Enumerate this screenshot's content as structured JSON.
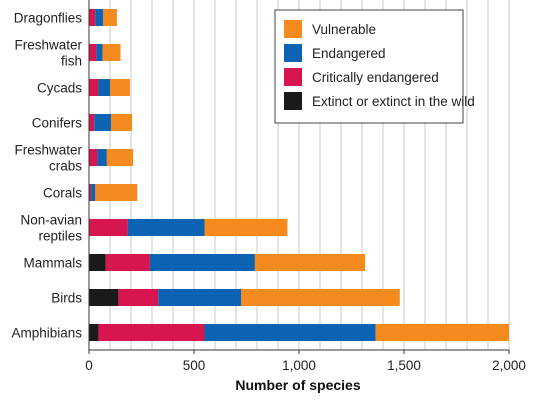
{
  "chart_data": {
    "type": "bar",
    "orientation": "horizontal",
    "stacked": true,
    "title": "",
    "xlabel": "Number of species",
    "ylabel": "",
    "xlim": [
      0,
      2000
    ],
    "xticks": [
      0,
      500,
      1000,
      1500,
      2000
    ],
    "xtick_labels": [
      "0",
      "500",
      "1,000",
      "1,500",
      "2,000"
    ],
    "grid": "vertical",
    "legend_position": "top-right",
    "categories": [
      [
        "Dragonflies"
      ],
      [
        "Freshwater",
        "fish"
      ],
      [
        "Cycads"
      ],
      [
        "Conifers"
      ],
      [
        "Freshwater",
        "crabs"
      ],
      [
        "Corals"
      ],
      [
        "Non-avian",
        "reptiles"
      ],
      [
        "Mammals"
      ],
      [
        "Birds"
      ],
      [
        "Amphibians"
      ]
    ],
    "legend_order": [
      3,
      2,
      1,
      0
    ],
    "series": [
      {
        "name": "Extinct or extinct in the wild",
        "color": "#1a1a1a",
        "values": [
          0,
          0,
          0,
          0,
          0,
          0,
          0,
          80,
          140,
          45
        ]
      },
      {
        "name": "Critically endangered",
        "color": "#d7164f",
        "values": [
          30,
          35,
          45,
          25,
          40,
          10,
          185,
          210,
          190,
          505
        ]
      },
      {
        "name": "Endangered",
        "color": "#0c62b3",
        "values": [
          38,
          30,
          55,
          80,
          45,
          20,
          365,
          500,
          395,
          815
        ]
      },
      {
        "name": "Vulnerable",
        "color": "#f58a1f",
        "values": [
          65,
          85,
          95,
          100,
          125,
          200,
          395,
          525,
          755,
          635
        ]
      }
    ]
  }
}
